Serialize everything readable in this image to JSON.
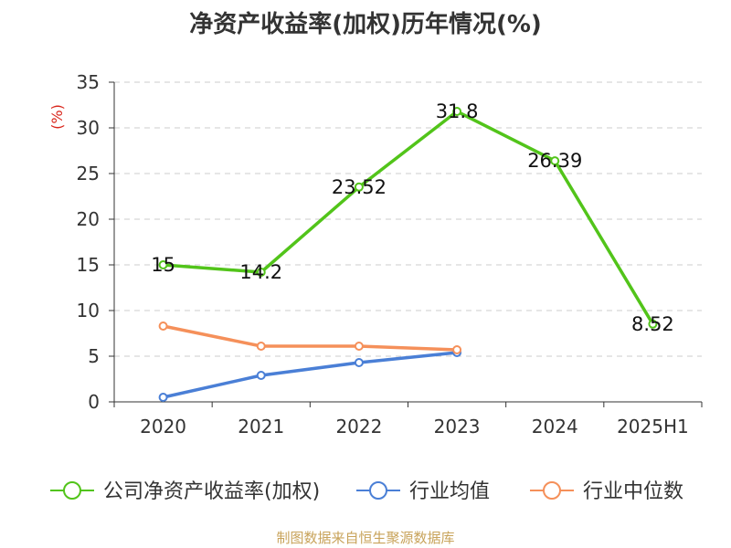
{
  "chart_data": {
    "type": "line",
    "title": "净资产收益率(加权)历年情况(%)",
    "ylabel": "(%)",
    "categories": [
      "2020",
      "2021",
      "2022",
      "2023",
      "2024",
      "2025H1"
    ],
    "ylim": [
      0,
      35
    ],
    "yticks": [
      0,
      5,
      10,
      15,
      20,
      25,
      30,
      35
    ],
    "grid": true,
    "legend_position": "bottom",
    "series": [
      {
        "name": "公司净资产收益率(加权)",
        "color": "#52c41a",
        "values": [
          15,
          14.2,
          23.52,
          31.8,
          26.39,
          8.52
        ],
        "show_labels": true
      },
      {
        "name": "行业均值",
        "color": "#4a7fd6",
        "values": [
          0.5,
          2.9,
          4.3,
          5.4,
          null,
          null
        ],
        "show_labels": false
      },
      {
        "name": "行业中位数",
        "color": "#f5905a",
        "values": [
          8.3,
          6.1,
          6.1,
          5.7,
          null,
          null
        ],
        "show_labels": false
      }
    ]
  },
  "source": "制图数据来自恒生聚源数据库"
}
